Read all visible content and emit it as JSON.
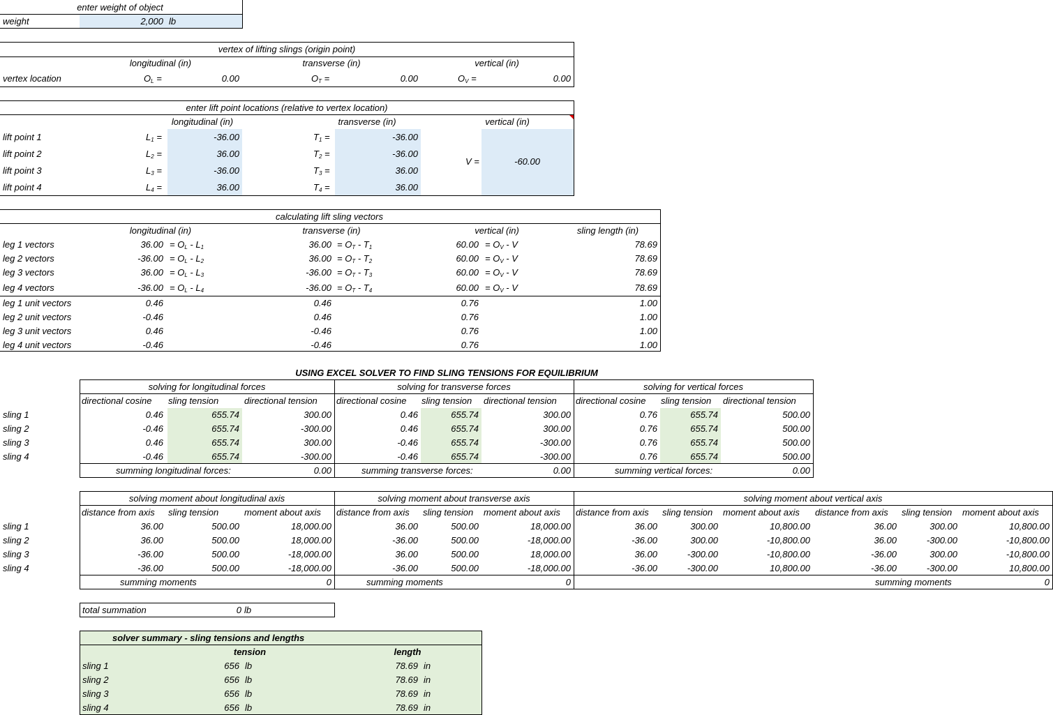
{
  "weight_section": {
    "header": "enter weight of object",
    "label": "weight",
    "value": "2,000",
    "unit": "lb"
  },
  "vertex_section": {
    "title": "vertex of lifting slings (origin point)",
    "col_longitudinal": "longitudinal (in)",
    "col_transverse": "transverse (in)",
    "col_vertical": "vertical (in)",
    "row_label": "vertex location",
    "ol_label": "O",
    "ol_sub": "L",
    "ol_value": "0.00",
    "ot_label": "O",
    "ot_sub": "T",
    "ot_value": "0.00",
    "ov_label": "O",
    "ov_sub": "V",
    "ov_value": "0.00",
    "eq": "="
  },
  "lift_points": {
    "title": "enter lift point locations (relative to vertex location)",
    "col_longitudinal": "longitudinal (in)",
    "col_transverse": "transverse (in)",
    "col_vertical": "vertical (in)",
    "rows": [
      {
        "label": "lift point 1",
        "l_sym": "L",
        "t_sym": "T",
        "n": "1",
        "l": "-36.00",
        "t": "-36.00"
      },
      {
        "label": "lift point 2",
        "l_sym": "L",
        "t_sym": "T",
        "n": "2",
        "l": "36.00",
        "t": "-36.00"
      },
      {
        "label": "lift point 3",
        "l_sym": "L",
        "t_sym": "T",
        "n": "3",
        "l": "-36.00",
        "t": "36.00"
      },
      {
        "label": "lift point 4",
        "l_sym": "L",
        "t_sym": "T",
        "n": "4",
        "l": "36.00",
        "t": "36.00"
      }
    ],
    "v_label": "V =",
    "v_value": "-60.00",
    "eq": "="
  },
  "vectors": {
    "title": "calculating lift sling vectors",
    "col_longitudinal": "longitudinal (in)",
    "col_transverse": "transverse (in)",
    "col_vertical": "vertical (in)",
    "col_length": "sling length (in)",
    "rows": [
      {
        "label": "leg 1 vectors",
        "l": "36.00",
        "n": "1",
        "t": "36.00",
        "v": "60.00",
        "len": "78.69"
      },
      {
        "label": "leg 2 vectors",
        "l": "-36.00",
        "n": "2",
        "t": "36.00",
        "v": "60.00",
        "len": "78.69"
      },
      {
        "label": "leg 3 vectors",
        "l": "36.00",
        "n": "3",
        "t": "-36.00",
        "v": "60.00",
        "len": "78.69"
      },
      {
        "label": "leg 4 vectors",
        "l": "-36.00",
        "n": "4",
        "t": "-36.00",
        "v": "60.00",
        "len": "78.69"
      }
    ],
    "formula_eq": "=",
    "formula_O": "O",
    "formula_minus": " - ",
    "formula_L": "L",
    "formula_T": "T",
    "formula_V": "V",
    "sub_L": "L",
    "sub_T": "T",
    "sub_V": "V",
    "unit_rows": [
      {
        "label": "leg 1 unit vectors",
        "l": "0.46",
        "t": "0.46",
        "v": "0.76",
        "len": "1.00"
      },
      {
        "label": "leg 2 unit vectors",
        "l": "-0.46",
        "t": "0.46",
        "v": "0.76",
        "len": "1.00"
      },
      {
        "label": "leg 3 unit vectors",
        "l": "0.46",
        "t": "-0.46",
        "v": "0.76",
        "len": "1.00"
      },
      {
        "label": "leg 4 unit vectors",
        "l": "-0.46",
        "t": "-0.46",
        "v": "0.76",
        "len": "1.00"
      }
    ]
  },
  "solver": {
    "title": "USING EXCEL SOLVER TO FIND SLING TENSIONS FOR EQUILIBRIUM",
    "groups": [
      {
        "title": "solving for longitudinal forces",
        "sum_label": "summing longitudinal forces:",
        "sum_value": "0.00",
        "rows": [
          [
            "0.46",
            "655.74",
            "300.00"
          ],
          [
            "-0.46",
            "655.74",
            "-300.00"
          ],
          [
            "0.46",
            "655.74",
            "300.00"
          ],
          [
            "-0.46",
            "655.74",
            "-300.00"
          ]
        ]
      },
      {
        "title": "solving for transverse forces",
        "sum_label": "summing transverse forces:",
        "sum_value": "0.00",
        "rows": [
          [
            "0.46",
            "655.74",
            "300.00"
          ],
          [
            "0.46",
            "655.74",
            "300.00"
          ],
          [
            "-0.46",
            "655.74",
            "-300.00"
          ],
          [
            "-0.46",
            "655.74",
            "-300.00"
          ]
        ]
      },
      {
        "title": "solving for vertical forces",
        "sum_label": "summing vertical forces:",
        "sum_value": "0.00",
        "rows": [
          [
            "0.76",
            "655.74",
            "500.00"
          ],
          [
            "0.76",
            "655.74",
            "500.00"
          ],
          [
            "0.76",
            "655.74",
            "500.00"
          ],
          [
            "0.76",
            "655.74",
            "500.00"
          ]
        ]
      }
    ],
    "col_cosine": "directional cosine",
    "col_tension": "sling tension",
    "col_dir_tension": "directional tension",
    "sling_labels": [
      "sling 1",
      "sling 2",
      "sling 3",
      "sling 4"
    ]
  },
  "moments": {
    "col_distance": "distance from axis",
    "col_tension": "sling tension",
    "col_moment": "moment about axis",
    "sum_label": "summing moments",
    "groups": [
      {
        "title": "solving moment about longitudinal axis",
        "sum_value": "0",
        "rows": [
          [
            "36.00",
            "500.00",
            "18,000.00"
          ],
          [
            "36.00",
            "500.00",
            "18,000.00"
          ],
          [
            "-36.00",
            "500.00",
            "-18,000.00"
          ],
          [
            "-36.00",
            "500.00",
            "-18,000.00"
          ]
        ]
      },
      {
        "title": "solving moment about transverse axis",
        "sum_value": "0",
        "rows": [
          [
            "36.00",
            "500.00",
            "18,000.00"
          ],
          [
            "-36.00",
            "500.00",
            "-18,000.00"
          ],
          [
            "36.00",
            "500.00",
            "18,000.00"
          ],
          [
            "-36.00",
            "500.00",
            "-18,000.00"
          ]
        ]
      },
      {
        "title": "solving moment about vertical axis",
        "sum_value": "0",
        "rows_a": [
          [
            "36.00",
            "300.00",
            "10,800.00"
          ],
          [
            "-36.00",
            "300.00",
            "-10,800.00"
          ],
          [
            "36.00",
            "-300.00",
            "-10,800.00"
          ],
          [
            "-36.00",
            "-300.00",
            "10,800.00"
          ]
        ],
        "rows_b": [
          [
            "36.00",
            "300.00",
            "10,800.00"
          ],
          [
            "36.00",
            "-300.00",
            "-10,800.00"
          ],
          [
            "-36.00",
            "300.00",
            "-10,800.00"
          ],
          [
            "-36.00",
            "-300.00",
            "10,800.00"
          ]
        ]
      }
    ]
  },
  "total": {
    "label": "total summation",
    "value": "0",
    "unit": "lb"
  },
  "summary": {
    "title": "solver summary - sling tensions and lengths",
    "col_tension": "tension",
    "col_length": "length",
    "tension_unit": "lb",
    "length_unit": "in",
    "rows": [
      {
        "label": "sling 1",
        "tension": "656",
        "length": "78.69"
      },
      {
        "label": "sling 2",
        "tension": "656",
        "length": "78.69"
      },
      {
        "label": "sling 3",
        "tension": "656",
        "length": "78.69"
      },
      {
        "label": "sling 4",
        "tension": "656",
        "length": "78.69"
      }
    ]
  },
  "colors": {
    "input_fill": "#ddebf7",
    "solver_fill": "#e2efda",
    "grid_line": "#000000",
    "comment_marker": "#e00000"
  }
}
